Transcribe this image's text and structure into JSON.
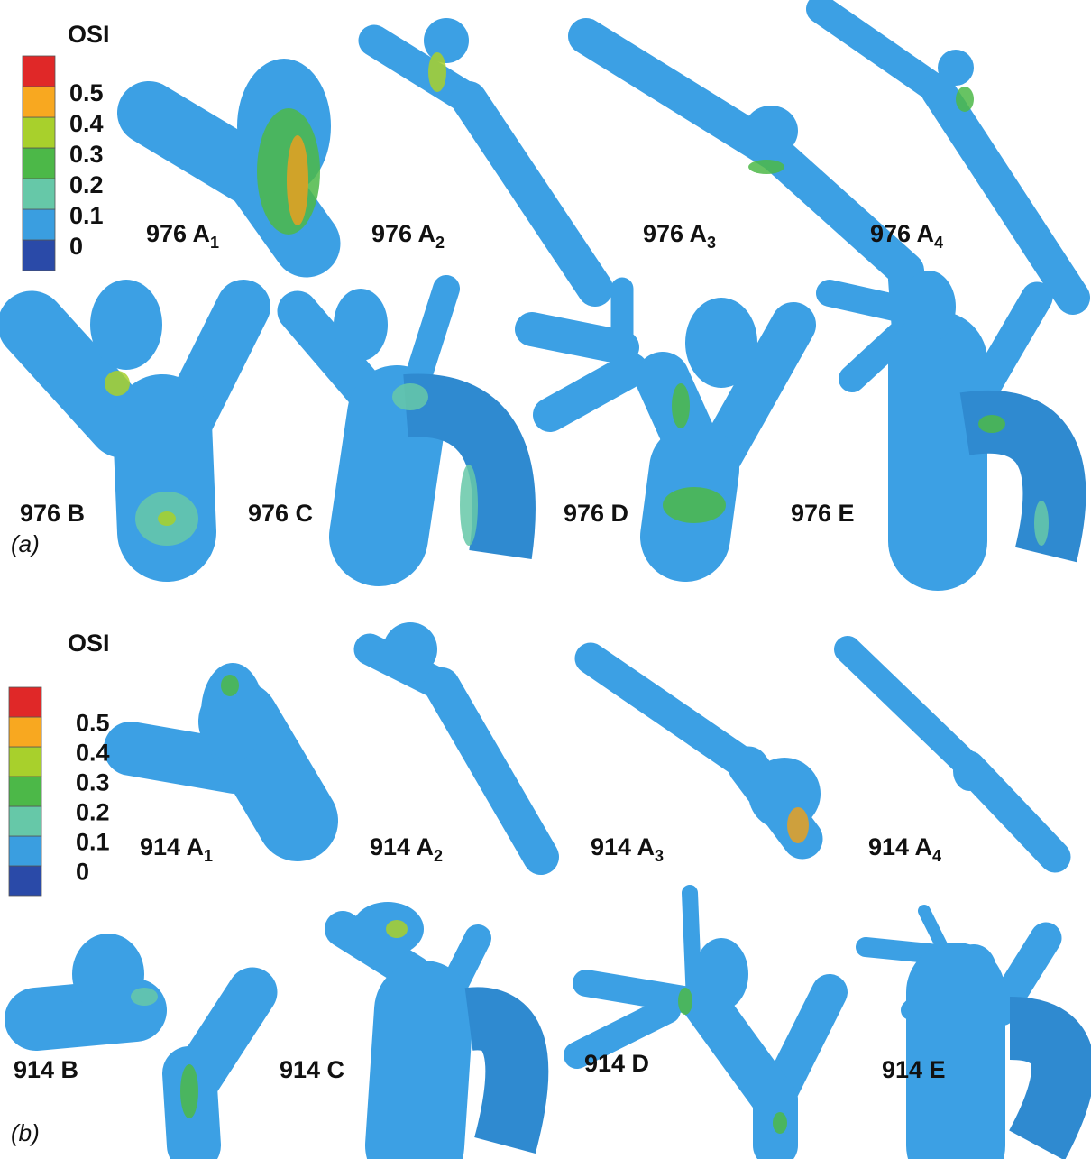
{
  "panels": [
    {
      "label": "(a)",
      "colorbar": {
        "title": "OSI",
        "ticks": [
          0,
          0.1,
          0.2,
          0.3,
          0.4,
          0.5
        ],
        "colors": [
          "#2a4aa8",
          "#3a9ee0",
          "#66c8a8",
          "#4cb848",
          "#a8d02c",
          "#f8a820",
          "#e02828"
        ]
      },
      "models": [
        {
          "text": "976 A",
          "sub": "1"
        },
        {
          "text": "976 A",
          "sub": "2"
        },
        {
          "text": "976 A",
          "sub": "3"
        },
        {
          "text": "976 A",
          "sub": "4"
        },
        {
          "text": "976 B"
        },
        {
          "text": "976 C"
        },
        {
          "text": "976 D"
        },
        {
          "text": "976 E"
        }
      ]
    },
    {
      "label": "(b)",
      "colorbar": {
        "title": "OSI",
        "ticks": [
          0,
          0.1,
          0.2,
          0.3,
          0.4,
          0.5
        ],
        "colors": [
          "#2a4aa8",
          "#3a9ee0",
          "#66c8a8",
          "#4cb848",
          "#a8d02c",
          "#f8a820",
          "#e02828"
        ]
      },
      "models": [
        {
          "text": "914 A",
          "sub": "1"
        },
        {
          "text": "914 A",
          "sub": "2"
        },
        {
          "text": "914 A",
          "sub": "3"
        },
        {
          "text": "914 A",
          "sub": "4"
        },
        {
          "text": "914 B"
        },
        {
          "text": "914 C"
        },
        {
          "text": "914 D"
        },
        {
          "text": "914 E"
        }
      ]
    }
  ]
}
